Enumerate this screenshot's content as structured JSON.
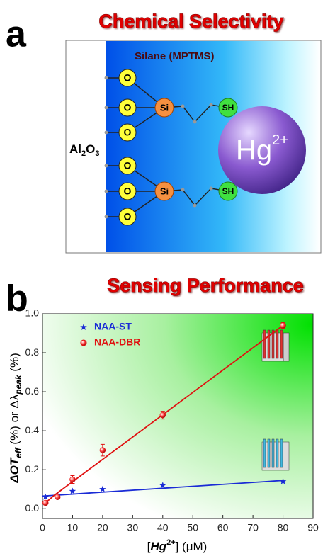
{
  "panel_a": {
    "letter": "a",
    "title": "Chemical Selectivity",
    "silane": "Silane (MPTMS)",
    "substrate": [
      "Al",
      "2",
      "O",
      "3"
    ],
    "oxygens": [
      "O",
      "O",
      "O",
      "O",
      "O",
      "O"
    ],
    "silicons": [
      "Si",
      "Si"
    ],
    "thiols": [
      "SH",
      "SH"
    ],
    "ion": [
      "Hg",
      "2+"
    ]
  },
  "chart_data": {
    "type": "scatter",
    "letter": "b",
    "title": "Sensing Performance",
    "xlabel_parts": [
      "[",
      "Hg",
      "2+",
      "] (μM)"
    ],
    "ylabel_parts": [
      "ΔOT",
      "eff",
      " (%) or Δλ",
      "peak",
      " (%)"
    ],
    "xlim": [
      0,
      90
    ],
    "xticks": [
      0,
      10,
      20,
      30,
      40,
      50,
      60,
      70,
      80,
      90
    ],
    "ylim": [
      -0.05,
      1.0
    ],
    "yticks": [
      {
        "value": 0,
        "label": "0.0"
      },
      0.2,
      0.4,
      0.6,
      0.8,
      {
        "value": 1,
        "label": "1.0"
      }
    ],
    "series": [
      {
        "name": "NAA-ST",
        "color": "#1a2bd6",
        "marker": "star",
        "x": [
          1,
          5,
          10,
          20,
          40,
          80
        ],
        "values": [
          0.06,
          0.07,
          0.09,
          0.1,
          0.12,
          0.14
        ],
        "fit": {
          "x": [
            0,
            80
          ],
          "y": [
            0.065,
            0.145
          ]
        }
      },
      {
        "name": "NAA-DBR",
        "color": "#e01010",
        "marker": "circle",
        "x": [
          1,
          5,
          10,
          20,
          40,
          80
        ],
        "values": [
          0.03,
          0.06,
          0.15,
          0.3,
          0.48,
          0.94
        ],
        "errors": [
          0.01,
          0.01,
          0.02,
          0.03,
          0.02,
          0.015
        ],
        "fit": {
          "x": [
            1,
            4,
            80
          ],
          "y": [
            0.03,
            0.07,
            0.94
          ]
        }
      }
    ]
  }
}
